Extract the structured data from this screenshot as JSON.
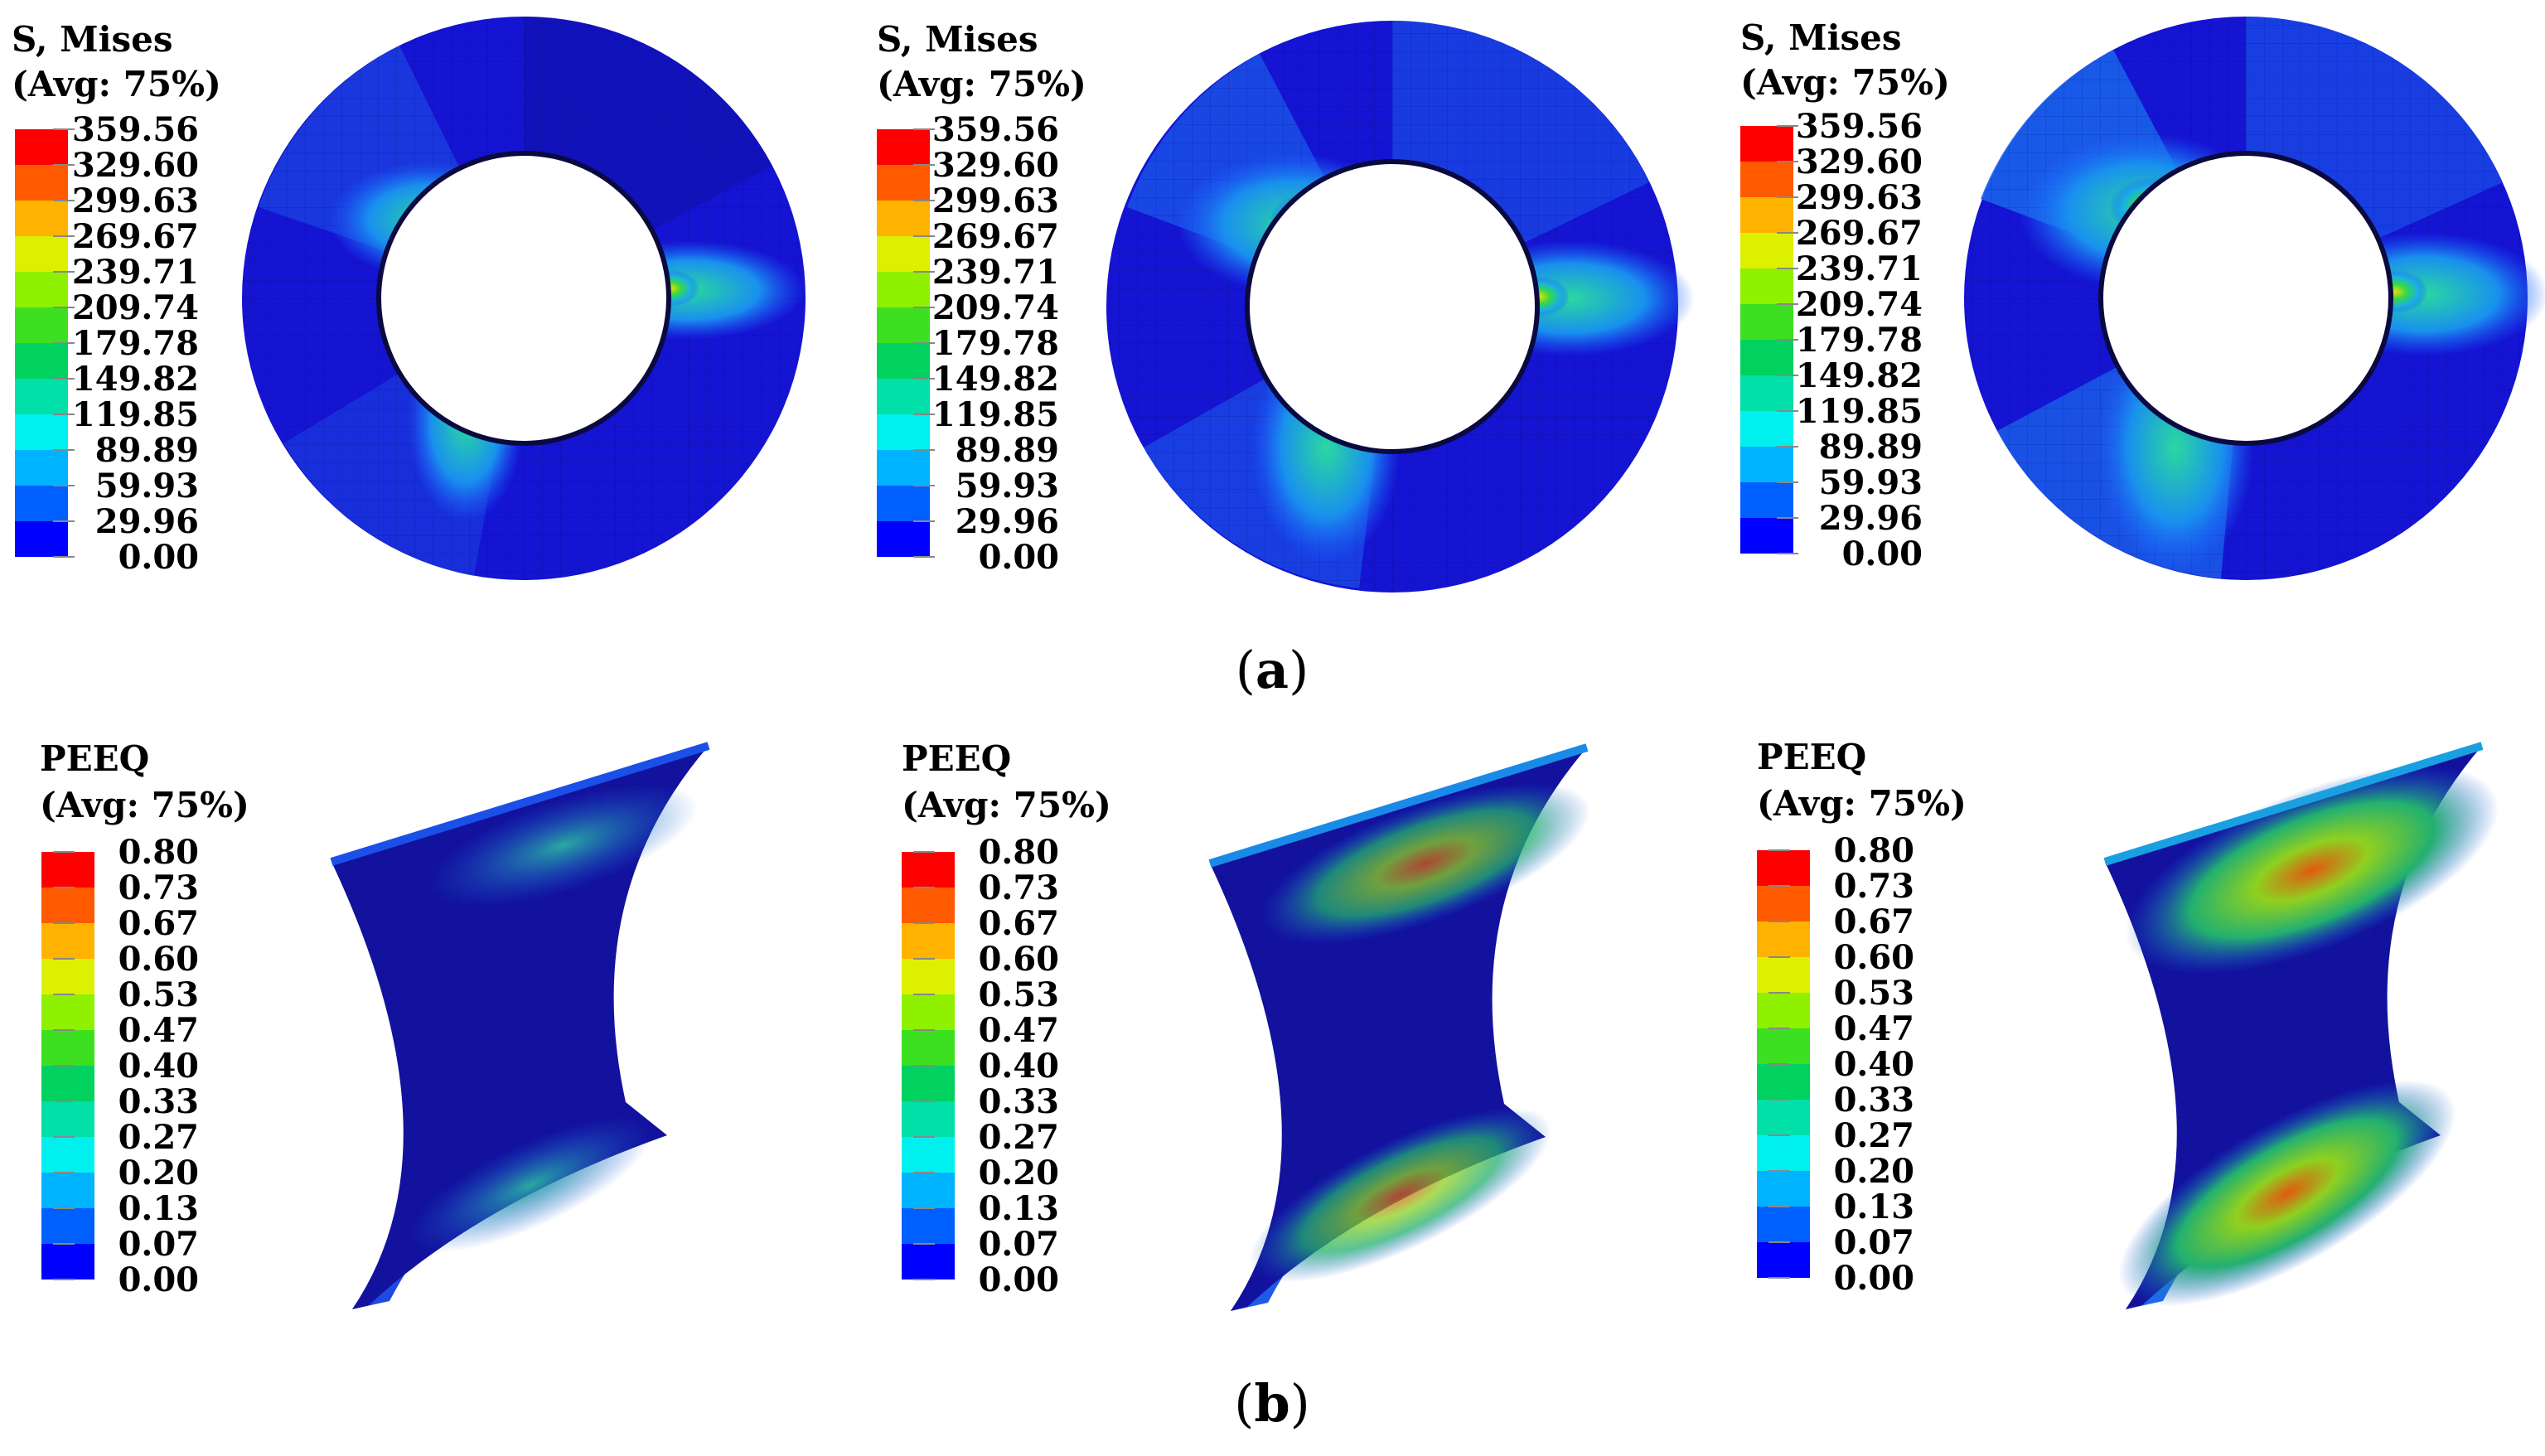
{
  "figure": {
    "rows": [
      {
        "key": "a",
        "caption": {
          "open": "(",
          "label": "a",
          "close": ")"
        },
        "variable": "S, Mises",
        "averaging": "(Avg: 75%)",
        "shape": "ring",
        "ticks": [
          "359.56",
          "329.60",
          "299.63",
          "269.67",
          "239.71",
          "209.74",
          "179.78",
          "149.82",
          "119.85",
          "89.89",
          "59.93",
          "29.96",
          "0.00"
        ],
        "panels": 3
      },
      {
        "key": "b",
        "caption": {
          "open": "(",
          "label": "b",
          "close": ")"
        },
        "variable": "PEEQ",
        "averaging": "(Avg: 75%)",
        "shape": "cell",
        "ticks": [
          "0.80",
          "0.73",
          "0.67",
          "0.60",
          "0.53",
          "0.47",
          "0.40",
          "0.33",
          "0.27",
          "0.20",
          "0.13",
          "0.07",
          "0.00"
        ],
        "panels": 3
      }
    ],
    "colorbar": [
      "#ff0000",
      "#ff5a00",
      "#ffb300",
      "#ddf000",
      "#8ff000",
      "#3de020",
      "#00d15f",
      "#00e0a8",
      "#00f0f0",
      "#00b3ff",
      "#0060ff",
      "#0000ff"
    ],
    "colors": {
      "background": "#1414d2",
      "mesh": "#0a0a70"
    }
  }
}
